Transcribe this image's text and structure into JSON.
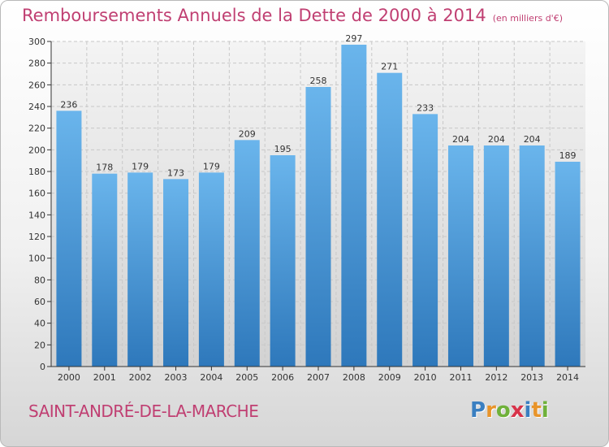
{
  "header": {
    "title": "Remboursements Annuels de la Dette de 2000 à 2014",
    "unit": "(en milliers d'€)"
  },
  "footer": {
    "commune": "SAINT-ANDRÉ-DE-LA-MARCHE",
    "logo_letters": [
      "P",
      "r",
      "o",
      "x",
      "i",
      "t",
      "i"
    ],
    "logo_colors": [
      "#3a7fc1",
      "#e8942a",
      "#6fb13a",
      "#d8334a",
      "#3a7fc1",
      "#e8942a",
      "#6fb13a"
    ]
  },
  "colors": {
    "bar_top": "#6ab5ec",
    "bar_bottom": "#2e78bb",
    "title": "#c03f72",
    "axis": "#333333"
  },
  "chart_data": {
    "type": "bar",
    "categories": [
      "2000",
      "2001",
      "2002",
      "2003",
      "2004",
      "2005",
      "2006",
      "2007",
      "2008",
      "2009",
      "2010",
      "2011",
      "2012",
      "2013",
      "2014"
    ],
    "values": [
      236,
      178,
      179,
      173,
      179,
      209,
      195,
      258,
      297,
      271,
      233,
      204,
      204,
      204,
      189
    ],
    "ylim": [
      0,
      300
    ],
    "yticks": [
      0,
      20,
      40,
      60,
      80,
      100,
      120,
      140,
      160,
      180,
      200,
      220,
      240,
      260,
      280,
      300
    ],
    "grid": true,
    "data_labels": true
  }
}
